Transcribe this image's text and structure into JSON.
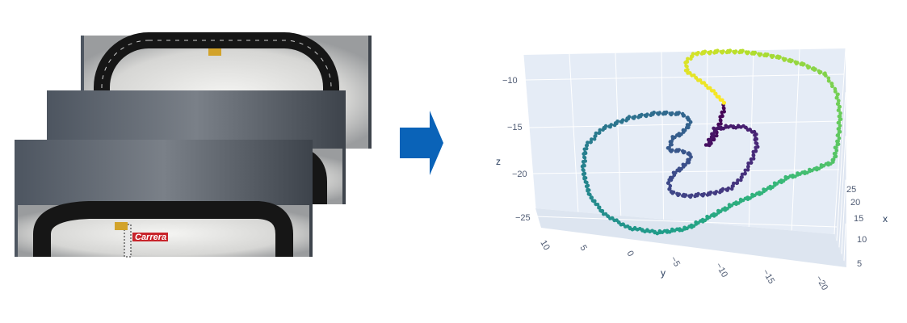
{
  "left_panel": {
    "frame_count": 3,
    "frame_logo_text": "Carrera"
  },
  "arrow": {
    "color": "#0a63b8",
    "icon": "right-arrow-icon"
  },
  "chart_data": {
    "type": "scatter3d",
    "title": "",
    "colorscale": "viridis",
    "axes": {
      "x": {
        "label": "x",
        "ticks": [
          5,
          10,
          15,
          20,
          25
        ]
      },
      "y": {
        "label": "y",
        "ticks": [
          10,
          5,
          0,
          -5,
          -10,
          -15,
          -20
        ]
      },
      "z": {
        "label": "z",
        "ticks": [
          -10,
          -15,
          -20,
          -25
        ]
      }
    },
    "grid": true,
    "background": "#e5ecf6",
    "trajectory_samples": 150
  }
}
